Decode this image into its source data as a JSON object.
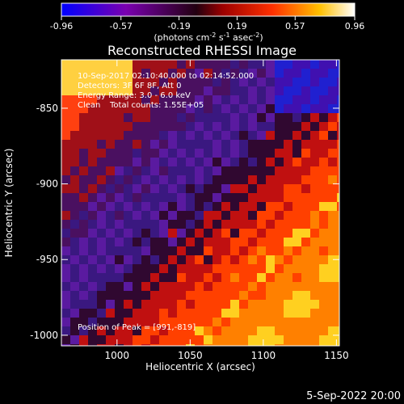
{
  "title": "Reconstructed RHESSI Image",
  "colorbar": {
    "tick_labels": [
      "-0.96",
      "-0.57",
      "-0.19",
      "0.19",
      "0.57",
      "0.96"
    ],
    "ticks": [
      -0.96,
      -0.57,
      -0.19,
      0.19,
      0.57,
      0.96
    ],
    "range": [
      -0.96,
      0.96
    ],
    "unit_label": {
      "prefix": "(photons cm",
      "sup1": "-2",
      "mid1": " s",
      "sup2": "-1",
      "mid2": " asec",
      "sup3": "-2",
      "suffix": ")"
    },
    "colors": [
      "#0000ff",
      "#7a00b0",
      "#220010",
      "#9c0000",
      "#ff3000",
      "#ffc000",
      "#ffffff"
    ]
  },
  "annotations": {
    "time_range": "10-Sep-2017 02:10:40.000 to 02:14:52.000",
    "detectors": "Detectors: 3F 6F 8F, Att 0",
    "energy_range": "Energy Range: 3.0 - 6.0 keV",
    "method": "Clean",
    "total_counts": "Total counts: 1.55E+05",
    "peak": "Position of Peak = [991,-819]"
  },
  "axes": {
    "xlabel": "Heliocentric X (arcsec)",
    "ylabel": "Heliocentric Y (arcsec)",
    "xlim": [
      962,
      1152
    ],
    "ylim": [
      -1007,
      -818
    ],
    "xtick_labels": [
      "1000",
      "1050",
      "1100",
      "1150"
    ],
    "xticks": [
      1000,
      1050,
      1100,
      1150
    ],
    "ytick_labels": [
      "-850",
      "-900",
      "-950",
      "-1000"
    ],
    "yticks": [
      -850,
      -900,
      -950,
      -1000
    ]
  },
  "timestamp": "5-Sep-2022 20:00"
}
